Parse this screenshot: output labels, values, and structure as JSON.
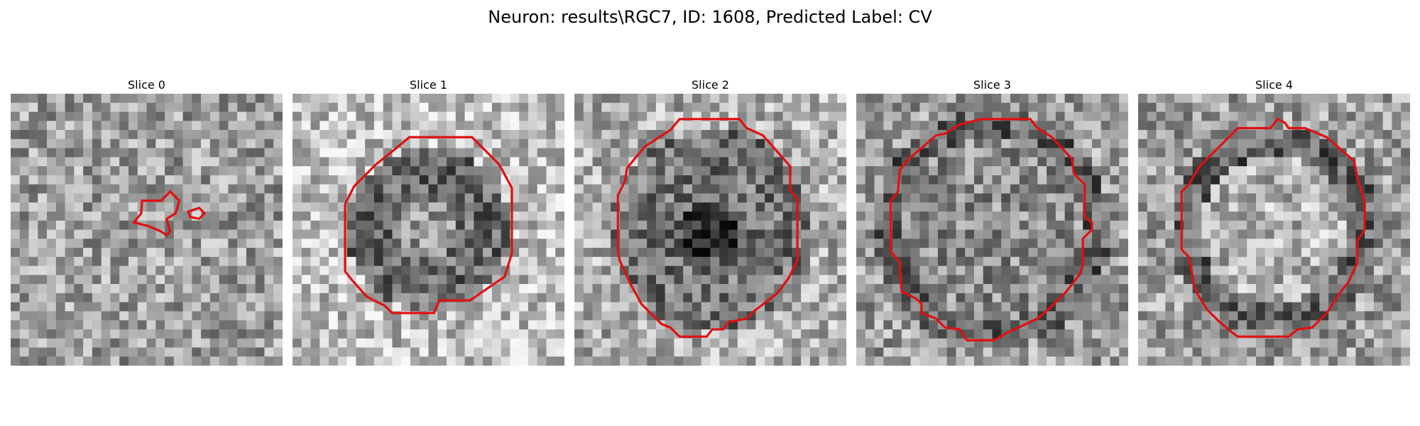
{
  "figure": {
    "title": "Neuron: results\\RGC7, ID: 1608, Predicted Label: CV"
  },
  "panels": [
    {
      "title": "Slice 0"
    },
    {
      "title": "Slice 1"
    },
    {
      "title": "Slice 2"
    },
    {
      "title": "Slice 3"
    },
    {
      "title": "Slice 4"
    }
  ],
  "colors": {
    "contour": "#e01010",
    "background": "#ffffff"
  }
}
